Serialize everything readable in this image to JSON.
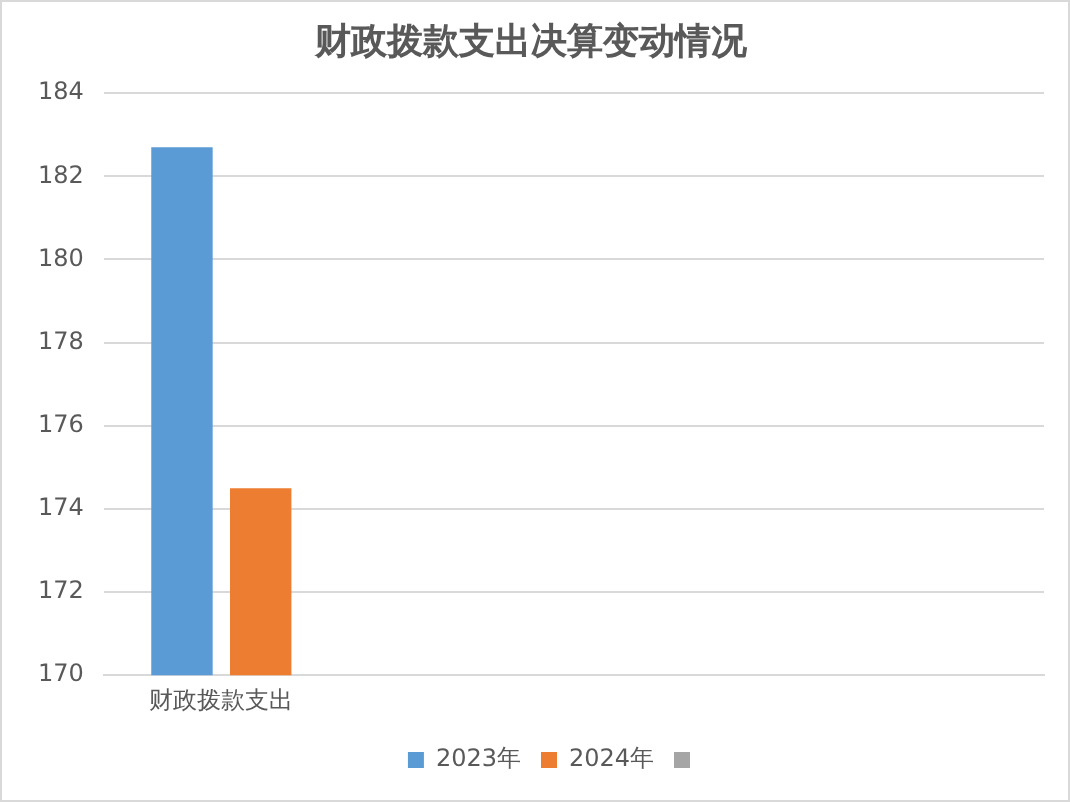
{
  "chart_data": {
    "type": "bar",
    "title": "财政拨款支出决算变动情况",
    "categories": [
      "财政拨款支出",
      null,
      null,
      null
    ],
    "series": [
      {
        "name": "2023年",
        "color": "#5b9bd5",
        "values": [
          182.7,
          null,
          null,
          null
        ]
      },
      {
        "name": "2024年",
        "color": "#ed7d31",
        "values": [
          174.5,
          null,
          null,
          null
        ]
      }
    ],
    "ylim": [
      170,
      184
    ],
    "yticks": [
      170,
      172,
      174,
      176,
      178,
      180,
      182,
      184
    ],
    "grid": "y",
    "legend": "bottom"
  }
}
